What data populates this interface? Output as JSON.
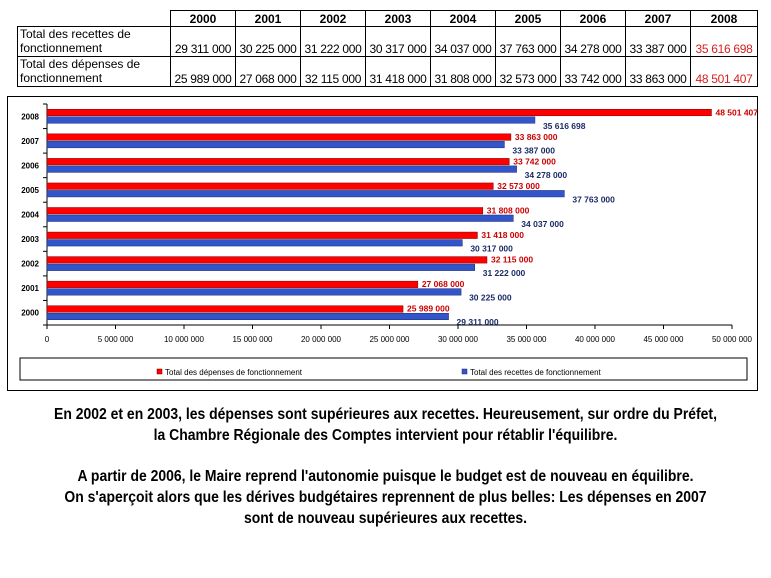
{
  "table": {
    "years": [
      "2000",
      "2001",
      "2002",
      "2003",
      "2004",
      "2005",
      "2006",
      "2007",
      "2008"
    ],
    "rows": [
      {
        "label": "Total des recettes de fonctionnement",
        "values": [
          "29 311 000",
          "30 225 000",
          "31 222 000",
          "30 317 000",
          "34 037 000",
          "37 763 000",
          "34 278 000",
          "33 387 000",
          "35 616 698"
        ]
      },
      {
        "label": "Total des dépenses de fonctionnement",
        "values": [
          "25 989 000",
          "27 068 000",
          "32 115 000",
          "31 418 000",
          "31 808 000",
          "32 573 000",
          "33 742 000",
          "33 863 000",
          "48 501 407"
        ]
      }
    ]
  },
  "chart_data": {
    "type": "bar",
    "orientation": "horizontal",
    "categories": [
      "2000",
      "2001",
      "2002",
      "2003",
      "2004",
      "2005",
      "2006",
      "2007",
      "2008"
    ],
    "series": [
      {
        "name": "Total des dépenses de fonctionnement",
        "color": "#ff0000",
        "values": [
          25989000,
          27068000,
          32115000,
          31418000,
          31808000,
          32573000,
          33742000,
          33863000,
          48501407
        ],
        "labels": [
          "25 989 000",
          "27 068 000",
          "32 115 000",
          "31 418 000",
          "31 808 000",
          "32 573 000",
          "33 742 000",
          "33 863 000",
          "48 501 407"
        ]
      },
      {
        "name": "Total des recettes de fonctionnement",
        "color": "#3355cc",
        "values": [
          29311000,
          30225000,
          31222000,
          30317000,
          34037000,
          37763000,
          34278000,
          33387000,
          35616698
        ],
        "labels": [
          "29 311 000",
          "30 225 000",
          "31 222 000",
          "30 317 000",
          "34 037 000",
          "37 763 000",
          "34 278 000",
          "33 387 000",
          "35 616 698"
        ]
      }
    ],
    "xlim": [
      0,
      50000000
    ],
    "xticks": [
      "0",
      "5 000 000",
      "10 000 000",
      "15 000 000",
      "20 000 000",
      "25 000 000",
      "30 000 000",
      "35 000 000",
      "40 000 000",
      "45 000 000",
      "50 000 000"
    ],
    "legend": "bottom",
    "grid": false
  },
  "caption": {
    "p1_line1": "En 2002 et en 2003, les dépenses sont supérieures aux recettes. Heureusement, sur ordre du Préfet,",
    "p1_line2": "la Chambre Régionale des Comptes intervient pour rétablir l'équilibre.",
    "p2_line1": "A partir de 2006, le Maire reprend l'autonomie puisque le budget est de nouveau en équilibre.",
    "p2_line2": "On s'aperçoit alors que les dérives budgétaires reprennent de plus belles: Les dépenses en 2007",
    "p2_line3": "sont de nouveau supérieures aux recettes."
  }
}
